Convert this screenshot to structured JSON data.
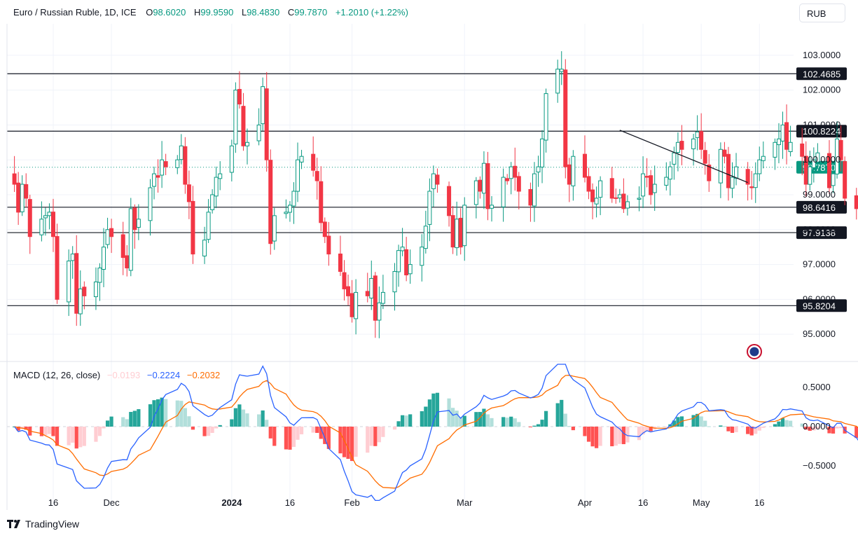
{
  "header": {
    "symbol": "Euro / Russian Ruble, 1D, ICE",
    "open_label": "O",
    "open": "98.6020",
    "high_label": "H",
    "high": "99.9590",
    "low_label": "L",
    "low": "98.4830",
    "close_label": "C",
    "close": "99.7870",
    "change": "+1.2010 (+1.22%)"
  },
  "currency_button": "RUB",
  "colors": {
    "up": "#089981",
    "down": "#f23645",
    "macd_line": "#2962ff",
    "signal_line": "#ff6d00",
    "hist_up_strong": "#26a69a",
    "hist_up_weak": "#b2dfdb",
    "hist_down_strong": "#ff5252",
    "hist_down_weak": "#ffcdd2"
  },
  "macd_header": {
    "title": "MACD (12, 26, close)",
    "hist": "−0.0193",
    "macd": "−0.2224",
    "signal": "−0.2032"
  },
  "brand": "TradingView",
  "chart_data": {
    "type": "candlestick",
    "price_axis": {
      "ticks": [
        "103.0000",
        "102.0000",
        "101.0000",
        "100.0000",
        "99.0000",
        "98.0000",
        "97.0000",
        "96.0000",
        "95.0000"
      ],
      "range": [
        94.3,
        103.9
      ]
    },
    "horizontal_levels": [
      {
        "value": 102.4685,
        "label": "102.4685"
      },
      {
        "value": 100.8224,
        "label": "100.8224"
      },
      {
        "value": 98.6416,
        "label": "98.6416"
      },
      {
        "value": 97.9138,
        "label": "97.9138"
      },
      {
        "value": 95.8204,
        "label": "95.8204"
      }
    ],
    "last_price": {
      "value": 99.787,
      "label": "99.7870"
    },
    "trendline": {
      "from": {
        "date": "2024-04-10",
        "price": 100.85
      },
      "to": {
        "date": "2024-05-13",
        "price": 99.35
      }
    },
    "x_axis": [
      {
        "label": "16",
        "date": "2023-11-16",
        "bold": false
      },
      {
        "label": "Dec",
        "date": "2023-12-01",
        "bold": false
      },
      {
        "label": "2024",
        "date": "2024-01-01",
        "bold": true
      },
      {
        "label": "16",
        "date": "2024-01-16",
        "bold": false
      },
      {
        "label": "Feb",
        "date": "2024-02-01",
        "bold": false
      },
      {
        "label": "Mar",
        "date": "2024-03-01",
        "bold": false
      },
      {
        "label": "Apr",
        "date": "2024-04-01",
        "bold": false
      },
      {
        "label": "16",
        "date": "2024-04-16",
        "bold": false
      },
      {
        "label": "May",
        "date": "2024-05-01",
        "bold": false
      },
      {
        "label": "16",
        "date": "2024-05-16",
        "bold": false
      }
    ],
    "closes": [
      99.3,
      98.5,
      99.3,
      98.9,
      97.8,
      98.3,
      98.4,
      98.5,
      97.8,
      96.0,
      97.1,
      97.3,
      95.6,
      96.3,
      96.1,
      96.5,
      96.9,
      97.5,
      98.0,
      97.8,
      97.2,
      96.9,
      98.6,
      98.0,
      98.3,
      99.2,
      99.6,
      99.5,
      100.0,
      99.8,
      100.0,
      100.4,
      99.3,
      98.8,
      97.3,
      97.7,
      98.5,
      99.0,
      99.5,
      99.6,
      100.4,
      102.0,
      101.6,
      100.4,
      100.5,
      101.0,
      102.1,
      100.0,
      97.6,
      98.4,
      98.5,
      98.7,
      99.1,
      100.0,
      100.1,
      99.7,
      99.4,
      98.2,
      97.8,
      97.3,
      96.8,
      96.3,
      96.1,
      95.5,
      96.2,
      96.1,
      96.6,
      95.4,
      95.9,
      96.2,
      96.8,
      97.4,
      97.5,
      96.7,
      97.0,
      97.5,
      98.1,
      99.1,
      99.6,
      99.3,
      98.4,
      97.5,
      98.3,
      97.5,
      98.7,
      99.4,
      99.1,
      99.9,
      98.6,
      98.7,
      99.5,
      99.4,
      99.8,
      99.5,
      99.1,
      98.7,
      99.6,
      99.8,
      100.6,
      101.9,
      102.6,
      102.6,
      99.8,
      99.3,
      100.1,
      99.5,
      99.1,
      98.8,
      98.9,
      99.4,
      98.9,
      98.9,
      99.0,
      98.6,
      98.8,
      98.9,
      99.6,
      99.5,
      99.0,
      99.3,
      99.5,
      99.8,
      100.2,
      100.5,
      100.3,
      100.6,
      100.8,
      100.3,
      99.9,
      99.4,
      100.3,
      100.1,
      99.2,
      99.5,
      99.8,
      99.3,
      99.2,
      99.6,
      100.0,
      100.1,
      100.5,
      100.6,
      101.0,
      100.3,
      100.5,
      100.1,
      99.3,
      99.8,
      100.0,
      100.2,
      99.2,
      99.6,
      100.6,
      100.0,
      98.9,
      98.6,
      98.6,
      99.1,
      100.1,
      100.0,
      100.0,
      98.3,
      97.9,
      98.6,
      98.1,
      98.7,
      99.8
    ]
  }
}
